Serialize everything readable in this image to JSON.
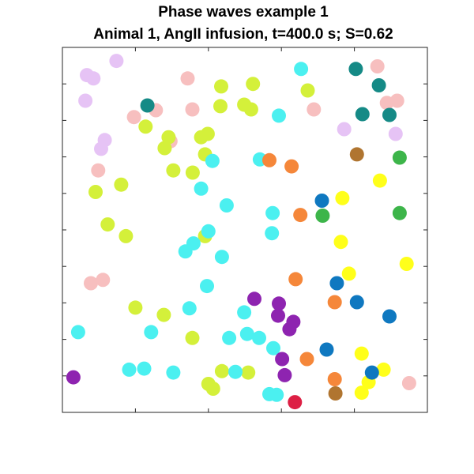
{
  "chart_data": {
    "type": "scatter",
    "title": "Phase waves example 1",
    "subtitle": "Animal 1, AngII infusion, t=400.0 s; S=0.62",
    "xlabel": "",
    "ylabel": "",
    "xlim": [
      0,
      100
    ],
    "ylim": [
      0,
      100
    ],
    "xticks": [
      0,
      20,
      40,
      60,
      80,
      100
    ],
    "yticks": [
      0,
      10,
      20,
      30,
      40,
      50,
      60,
      70,
      80,
      90,
      100
    ],
    "tick_labels_shown": false,
    "grid": false,
    "legend": "none",
    "points": [
      {
        "x": 14.8,
        "y": 96.3,
        "color": "#e6c3f5"
      },
      {
        "x": 6.7,
        "y": 92.4,
        "color": "#e6c3f5"
      },
      {
        "x": 8.5,
        "y": 91.5,
        "color": "#e6c3f5"
      },
      {
        "x": 6.3,
        "y": 85.4,
        "color": "#e6c3f5"
      },
      {
        "x": 11.6,
        "y": 74.6,
        "color": "#e6c3f5"
      },
      {
        "x": 10.6,
        "y": 72.2,
        "color": "#e6c3f5"
      },
      {
        "x": 77.2,
        "y": 77.6,
        "color": "#e6c3f5"
      },
      {
        "x": 91.3,
        "y": 76.3,
        "color": "#e6c3f5"
      },
      {
        "x": 34.3,
        "y": 91.5,
        "color": "#f7bfbf"
      },
      {
        "x": 86.3,
        "y": 94.8,
        "color": "#f7bfbf"
      },
      {
        "x": 25.6,
        "y": 82.8,
        "color": "#f7bfbf"
      },
      {
        "x": 35.6,
        "y": 83.0,
        "color": "#f7bfbf"
      },
      {
        "x": 19.6,
        "y": 80.9,
        "color": "#f7bfbf"
      },
      {
        "x": 68.9,
        "y": 83.0,
        "color": "#f7bfbf"
      },
      {
        "x": 88.9,
        "y": 84.8,
        "color": "#f7bfbf"
      },
      {
        "x": 91.7,
        "y": 85.4,
        "color": "#f7bfbf"
      },
      {
        "x": 9.8,
        "y": 66.3,
        "color": "#f7bfbf"
      },
      {
        "x": 29.6,
        "y": 74.3,
        "color": "#f7bfbf"
      },
      {
        "x": 7.8,
        "y": 35.4,
        "color": "#f7bfbf"
      },
      {
        "x": 11.1,
        "y": 36.3,
        "color": "#f7bfbf"
      },
      {
        "x": 95.0,
        "y": 8.0,
        "color": "#f7bfbf"
      },
      {
        "x": 43.5,
        "y": 89.3,
        "color": "#d4f03a"
      },
      {
        "x": 52.2,
        "y": 90.0,
        "color": "#d4f03a"
      },
      {
        "x": 43.3,
        "y": 83.9,
        "color": "#d4f03a"
      },
      {
        "x": 49.8,
        "y": 84.3,
        "color": "#d4f03a"
      },
      {
        "x": 51.7,
        "y": 83.0,
        "color": "#d4f03a"
      },
      {
        "x": 67.2,
        "y": 88.2,
        "color": "#d4f03a"
      },
      {
        "x": 22.8,
        "y": 78.3,
        "color": "#d4f03a"
      },
      {
        "x": 29.1,
        "y": 75.4,
        "color": "#d4f03a"
      },
      {
        "x": 38.0,
        "y": 75.4,
        "color": "#d4f03a"
      },
      {
        "x": 39.8,
        "y": 76.3,
        "color": "#d4f03a"
      },
      {
        "x": 28.0,
        "y": 72.4,
        "color": "#d4f03a"
      },
      {
        "x": 39.1,
        "y": 70.7,
        "color": "#d4f03a"
      },
      {
        "x": 30.4,
        "y": 66.3,
        "color": "#d4f03a"
      },
      {
        "x": 35.7,
        "y": 65.7,
        "color": "#d4f03a"
      },
      {
        "x": 16.1,
        "y": 62.4,
        "color": "#d4f03a"
      },
      {
        "x": 9.1,
        "y": 60.4,
        "color": "#d4f03a"
      },
      {
        "x": 12.4,
        "y": 51.5,
        "color": "#d4f03a"
      },
      {
        "x": 17.4,
        "y": 48.3,
        "color": "#d4f03a"
      },
      {
        "x": 39.1,
        "y": 48.3,
        "color": "#d4f03a"
      },
      {
        "x": 20.0,
        "y": 28.7,
        "color": "#d4f03a"
      },
      {
        "x": 27.8,
        "y": 26.7,
        "color": "#d4f03a"
      },
      {
        "x": 35.6,
        "y": 20.4,
        "color": "#d4f03a"
      },
      {
        "x": 43.7,
        "y": 11.3,
        "color": "#d4f03a"
      },
      {
        "x": 50.9,
        "y": 10.9,
        "color": "#d4f03a"
      },
      {
        "x": 40.0,
        "y": 7.8,
        "color": "#d4f03a"
      },
      {
        "x": 41.3,
        "y": 6.5,
        "color": "#d4f03a"
      },
      {
        "x": 65.4,
        "y": 94.1,
        "color": "#4bf0f0"
      },
      {
        "x": 59.3,
        "y": 81.3,
        "color": "#4bf0f0"
      },
      {
        "x": 54.1,
        "y": 69.3,
        "color": "#4bf0f0"
      },
      {
        "x": 41.1,
        "y": 68.9,
        "color": "#4bf0f0"
      },
      {
        "x": 38.0,
        "y": 61.3,
        "color": "#4bf0f0"
      },
      {
        "x": 45.0,
        "y": 56.7,
        "color": "#4bf0f0"
      },
      {
        "x": 57.6,
        "y": 54.6,
        "color": "#4bf0f0"
      },
      {
        "x": 40.0,
        "y": 49.6,
        "color": "#4bf0f0"
      },
      {
        "x": 57.4,
        "y": 49.1,
        "color": "#4bf0f0"
      },
      {
        "x": 35.9,
        "y": 46.3,
        "color": "#4bf0f0"
      },
      {
        "x": 33.7,
        "y": 44.1,
        "color": "#4bf0f0"
      },
      {
        "x": 43.7,
        "y": 42.6,
        "color": "#4bf0f0"
      },
      {
        "x": 39.6,
        "y": 34.6,
        "color": "#4bf0f0"
      },
      {
        "x": 34.8,
        "y": 28.5,
        "color": "#4bf0f0"
      },
      {
        "x": 49.8,
        "y": 27.4,
        "color": "#4bf0f0"
      },
      {
        "x": 4.3,
        "y": 22.0,
        "color": "#4bf0f0"
      },
      {
        "x": 24.3,
        "y": 22.0,
        "color": "#4bf0f0"
      },
      {
        "x": 45.7,
        "y": 20.4,
        "color": "#4bf0f0"
      },
      {
        "x": 50.6,
        "y": 21.5,
        "color": "#4bf0f0"
      },
      {
        "x": 53.9,
        "y": 20.4,
        "color": "#4bf0f0"
      },
      {
        "x": 57.8,
        "y": 17.6,
        "color": "#4bf0f0"
      },
      {
        "x": 18.3,
        "y": 11.7,
        "color": "#4bf0f0"
      },
      {
        "x": 22.4,
        "y": 12.0,
        "color": "#4bf0f0"
      },
      {
        "x": 30.4,
        "y": 10.9,
        "color": "#4bf0f0"
      },
      {
        "x": 47.4,
        "y": 11.1,
        "color": "#4bf0f0"
      },
      {
        "x": 56.7,
        "y": 5.0,
        "color": "#4bf0f0"
      },
      {
        "x": 58.7,
        "y": 4.8,
        "color": "#4bf0f0"
      },
      {
        "x": 23.3,
        "y": 84.1,
        "color": "#158a86"
      },
      {
        "x": 80.4,
        "y": 94.1,
        "color": "#158a86"
      },
      {
        "x": 86.7,
        "y": 89.6,
        "color": "#158a86"
      },
      {
        "x": 82.2,
        "y": 81.7,
        "color": "#158a86"
      },
      {
        "x": 89.6,
        "y": 81.5,
        "color": "#158a86"
      },
      {
        "x": 56.7,
        "y": 69.1,
        "color": "#f5873a"
      },
      {
        "x": 62.8,
        "y": 67.4,
        "color": "#f5873a"
      },
      {
        "x": 65.2,
        "y": 54.1,
        "color": "#f5873a"
      },
      {
        "x": 63.9,
        "y": 36.5,
        "color": "#f5873a"
      },
      {
        "x": 74.6,
        "y": 30.2,
        "color": "#f5873a"
      },
      {
        "x": 67.0,
        "y": 14.6,
        "color": "#f5873a"
      },
      {
        "x": 74.6,
        "y": 9.1,
        "color": "#f5873a"
      },
      {
        "x": 80.7,
        "y": 70.7,
        "color": "#b07530"
      },
      {
        "x": 74.8,
        "y": 5.2,
        "color": "#b07530"
      },
      {
        "x": 92.4,
        "y": 69.8,
        "color": "#3db54a"
      },
      {
        "x": 71.3,
        "y": 53.9,
        "color": "#3db54a"
      },
      {
        "x": 92.4,
        "y": 54.6,
        "color": "#3db54a"
      },
      {
        "x": 87.0,
        "y": 63.5,
        "color": "#ffff1a"
      },
      {
        "x": 76.7,
        "y": 58.7,
        "color": "#ffff1a"
      },
      {
        "x": 76.3,
        "y": 46.7,
        "color": "#ffff1a"
      },
      {
        "x": 78.5,
        "y": 38.0,
        "color": "#ffff1a"
      },
      {
        "x": 94.3,
        "y": 40.7,
        "color": "#ffff1a"
      },
      {
        "x": 82.0,
        "y": 16.1,
        "color": "#ffff1a"
      },
      {
        "x": 88.0,
        "y": 11.7,
        "color": "#ffff1a"
      },
      {
        "x": 83.9,
        "y": 8.3,
        "color": "#ffff1a"
      },
      {
        "x": 82.0,
        "y": 5.4,
        "color": "#ffff1a"
      },
      {
        "x": 71.1,
        "y": 58.0,
        "color": "#0f78c0"
      },
      {
        "x": 75.2,
        "y": 35.4,
        "color": "#0f78c0"
      },
      {
        "x": 80.7,
        "y": 30.2,
        "color": "#0f78c0"
      },
      {
        "x": 89.6,
        "y": 26.3,
        "color": "#0f78c0"
      },
      {
        "x": 72.4,
        "y": 17.2,
        "color": "#0f78c0"
      },
      {
        "x": 84.8,
        "y": 10.9,
        "color": "#0f78c0"
      },
      {
        "x": 52.6,
        "y": 31.1,
        "color": "#8e24b0"
      },
      {
        "x": 59.3,
        "y": 29.8,
        "color": "#8e24b0"
      },
      {
        "x": 59.1,
        "y": 26.5,
        "color": "#8e24b0"
      },
      {
        "x": 63.3,
        "y": 24.8,
        "color": "#8e24b0"
      },
      {
        "x": 62.2,
        "y": 22.8,
        "color": "#8e24b0"
      },
      {
        "x": 60.2,
        "y": 14.6,
        "color": "#8e24b0"
      },
      {
        "x": 60.9,
        "y": 10.2,
        "color": "#8e24b0"
      },
      {
        "x": 3.0,
        "y": 9.6,
        "color": "#8e24b0"
      },
      {
        "x": 63.7,
        "y": 2.8,
        "color": "#dd1f44"
      }
    ]
  }
}
